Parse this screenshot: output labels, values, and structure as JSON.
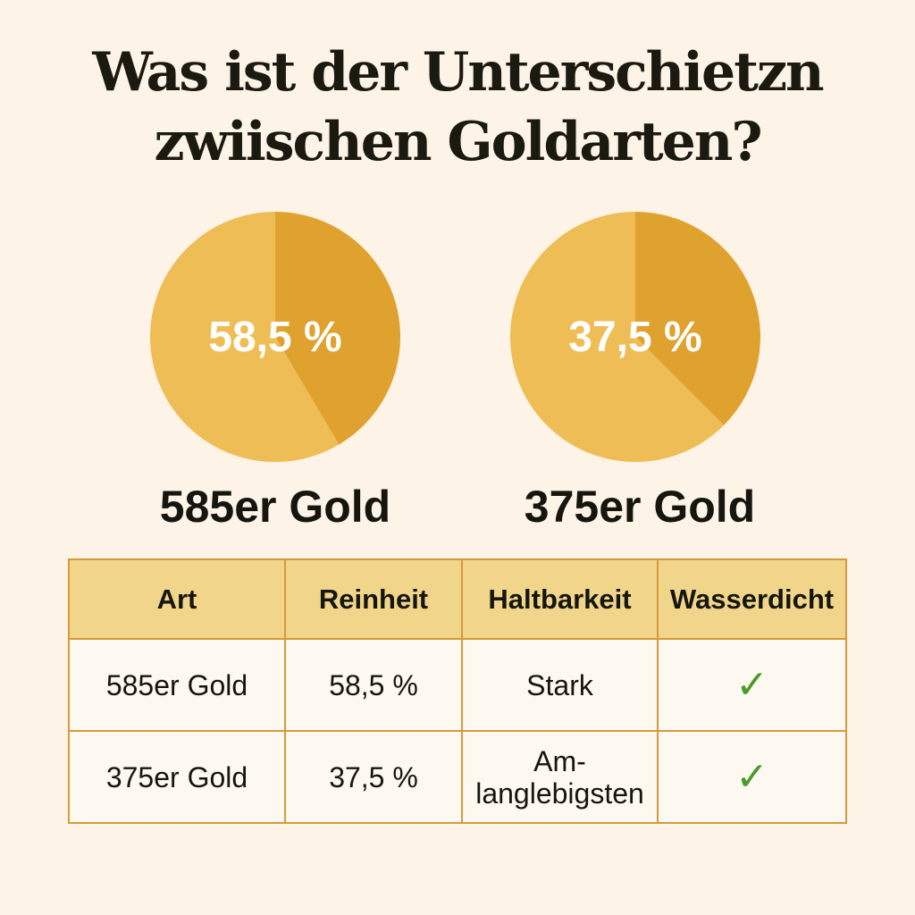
{
  "title": {
    "line1": "Was ist der Unterschietzn",
    "line2": "zwiischen Goldarten?"
  },
  "chart_data": [
    {
      "type": "pie",
      "label": "58,5 %",
      "caption": "585er Gold",
      "slices": [
        {
          "value": 58.5,
          "color": "#efbd55"
        },
        {
          "value": 41.5,
          "color": "#e0a22e"
        }
      ]
    },
    {
      "type": "pie",
      "label": "37,5 %",
      "caption": "375er Gold",
      "slices": [
        {
          "value": 62.5,
          "color": "#efbd55"
        },
        {
          "value": 37.5,
          "color": "#e0a22e"
        }
      ]
    }
  ],
  "table": {
    "headers": [
      "Art",
      "Reinheit",
      "Haltbarkeit",
      "Wasserdicht"
    ],
    "rows": [
      {
        "art": "585er Gold",
        "reinheit": "58,5 %",
        "haltbarkeit": "Stark",
        "wasserdicht": "✓"
      },
      {
        "art": "375er Gold",
        "reinheit": "37,5 %",
        "haltbarkeit": "Am-\nlanglebigsten",
        "wasserdicht": "✓"
      }
    ]
  },
  "colors": {
    "background": "#fdf3e6",
    "header": "#f0d58a",
    "border": "#d59a3a",
    "check": "#4a9a2a"
  }
}
